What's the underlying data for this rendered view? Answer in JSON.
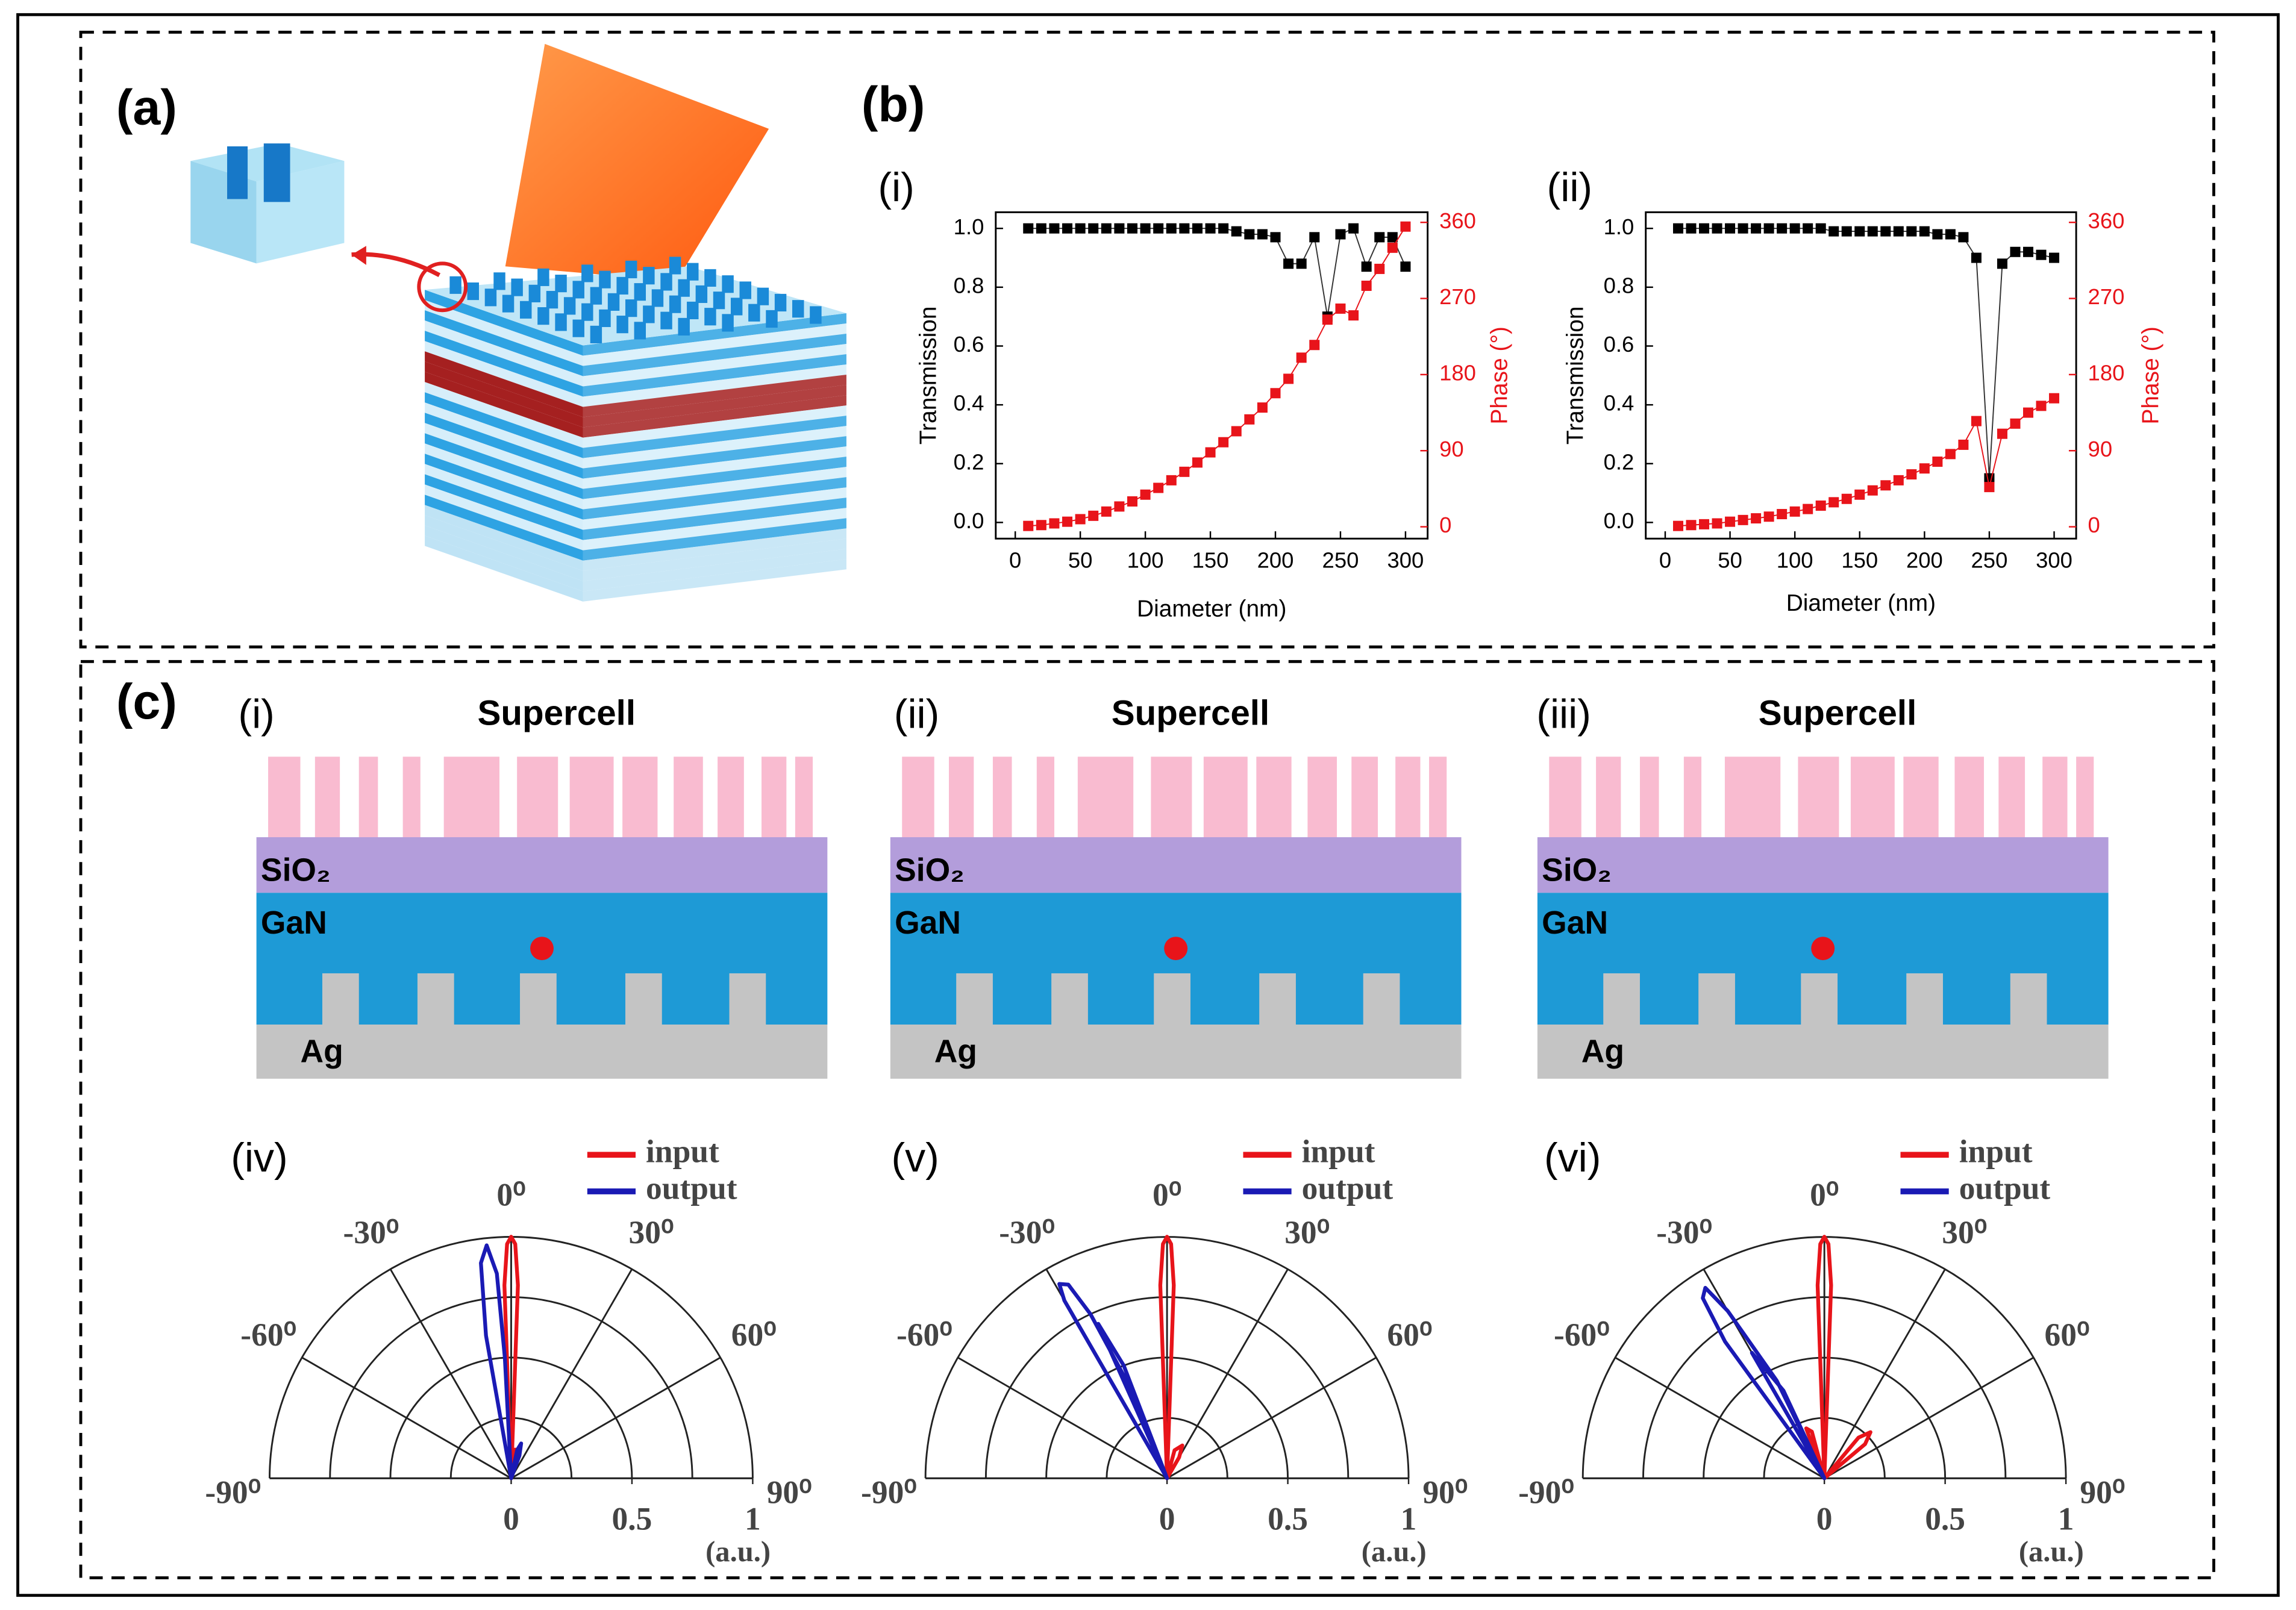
{
  "panels": {
    "a": "(a)",
    "b": "(b)",
    "c": "(c)"
  },
  "diagrams": [
    {
      "subtitle": "(i)",
      "title": "Supercell",
      "layers": [
        "SiO₂",
        "GaN",
        "Ag"
      ]
    },
    {
      "subtitle": "(ii)",
      "title": "Supercell",
      "layers": [
        "SiO₂",
        "GaN",
        "Ag"
      ]
    },
    {
      "subtitle": "(iii)",
      "title": "Supercell",
      "layers": [
        "SiO₂",
        "GaN",
        "Ag"
      ]
    }
  ],
  "chart_data": [
    {
      "type": "line",
      "subtitle": "(i)",
      "xlabel": "Diameter (nm)",
      "ylabel": "Transmission",
      "y2label": "Phase (°)",
      "x": [
        10,
        20,
        30,
        40,
        50,
        60,
        70,
        80,
        90,
        100,
        110,
        120,
        130,
        140,
        150,
        160,
        170,
        180,
        190,
        200,
        210,
        220,
        230,
        240,
        250,
        260,
        270,
        280,
        290,
        300
      ],
      "series": [
        {
          "color": "#000000",
          "values": [
            1,
            1,
            1,
            1,
            1,
            1,
            1,
            1,
            1,
            1,
            1,
            1,
            1,
            1,
            1,
            1,
            0.99,
            0.98,
            0.98,
            0.97,
            0.88,
            0.88,
            0.97,
            0.7,
            0.98,
            1,
            0.87,
            0.97,
            0.97,
            0.87
          ]
        },
        {
          "color": "#e8141a",
          "axis": "y2",
          "values": [
            1,
            2,
            4,
            6,
            9,
            13,
            18,
            24,
            30,
            38,
            46,
            55,
            65,
            76,
            88,
            100,
            113,
            127,
            141,
            158,
            175,
            200,
            215,
            245,
            258,
            250,
            285,
            305,
            330,
            355
          ]
        }
      ],
      "xlim": [
        -15,
        317
      ],
      "xticks": [
        0,
        50,
        100,
        150,
        200,
        250,
        300
      ],
      "ylim": [
        -0.055,
        1.055
      ],
      "yticks": [
        {
          "value": 0,
          "label": "0.0"
        },
        0.2,
        0.4,
        0.6,
        0.8,
        {
          "value": 1,
          "label": "1.0"
        }
      ],
      "y2lim": [
        -14,
        372
      ],
      "y2ticks": [
        0,
        90,
        180,
        270,
        360
      ]
    },
    {
      "type": "line",
      "subtitle": "(ii)",
      "xlabel": "Diameter (nm)",
      "ylabel": "Transmission",
      "y2label": "Phase (°)",
      "x": [
        10,
        20,
        30,
        40,
        50,
        60,
        70,
        80,
        90,
        100,
        110,
        120,
        130,
        140,
        150,
        160,
        170,
        180,
        190,
        200,
        210,
        220,
        230,
        240,
        250,
        260,
        270,
        280,
        290,
        300
      ],
      "series": [
        {
          "color": "#000000",
          "values": [
            1,
            1,
            1,
            1,
            1,
            1,
            1,
            1,
            1,
            1,
            1,
            1,
            0.99,
            0.99,
            0.99,
            0.99,
            0.99,
            0.99,
            0.99,
            0.99,
            0.98,
            0.98,
            0.97,
            0.9,
            0.15,
            0.88,
            0.92,
            0.92,
            0.91,
            0.9
          ]
        },
        {
          "color": "#e8141a",
          "axis": "y2",
          "values": [
            1,
            2,
            3,
            4,
            6,
            8,
            10,
            12,
            15,
            18,
            21,
            25,
            29,
            33,
            38,
            43,
            49,
            55,
            62,
            69,
            77,
            86,
            97,
            125,
            47,
            110,
            122,
            135,
            143,
            152
          ]
        }
      ],
      "xlim": [
        -15,
        317
      ],
      "xticks": [
        0,
        50,
        100,
        150,
        200,
        250,
        300
      ],
      "ylim": [
        -0.055,
        1.055
      ],
      "yticks": [
        {
          "value": 0,
          "label": "0.0"
        },
        0.2,
        0.4,
        0.6,
        0.8,
        {
          "value": 1,
          "label": "1.0"
        }
      ],
      "y2lim": [
        -14,
        372
      ],
      "y2ticks": [
        0,
        90,
        180,
        270,
        360
      ]
    },
    {
      "type": "polar",
      "subtitle": "(iv)",
      "rlabel": "(a.u.)",
      "rlim": [
        0,
        1
      ],
      "rticks": [
        0,
        0.5,
        1
      ],
      "rgrid": [
        0.25,
        0.5,
        0.75,
        1
      ],
      "thetaticks": [
        {
          "value": -90,
          "label": "-90⁰"
        },
        {
          "value": -60,
          "label": "-60⁰"
        },
        {
          "value": -30,
          "label": "-30⁰"
        },
        {
          "value": 0,
          "label": "0⁰"
        },
        {
          "value": 30,
          "label": "30⁰"
        },
        {
          "value": 60,
          "label": "60⁰"
        },
        {
          "value": 90,
          "label": "90⁰"
        }
      ],
      "series": [
        {
          "name": "input",
          "color": "#e8141a",
          "theta": [
            0,
            -2,
            -1,
            0,
            1,
            2,
            0,
            8,
            12,
            0
          ],
          "values": [
            0,
            0.8,
            0.97,
            1,
            0.97,
            0.8,
            0,
            0.12,
            0.1,
            0
          ]
        },
        {
          "name": "output",
          "color": "#1a1ab4",
          "theta": [
            0,
            -10,
            -8,
            -6,
            -4,
            -3,
            0,
            12,
            16,
            20,
            0
          ],
          "values": [
            0,
            0.6,
            0.9,
            0.97,
            0.85,
            0.5,
            0,
            0.12,
            0.15,
            0.1,
            0
          ]
        }
      ]
    },
    {
      "type": "polar",
      "subtitle": "(v)",
      "rlabel": "(a.u.)",
      "rlim": [
        0,
        1
      ],
      "rticks": [
        0,
        0.5,
        1
      ],
      "rgrid": [
        0.25,
        0.5,
        0.75,
        1
      ],
      "thetaticks": [
        {
          "value": -90,
          "label": "-90⁰"
        },
        {
          "value": -60,
          "label": "-60⁰"
        },
        {
          "value": -30,
          "label": "-30⁰"
        },
        {
          "value": 0,
          "label": "0⁰"
        },
        {
          "value": 30,
          "label": "30⁰"
        },
        {
          "value": 60,
          "label": "60⁰"
        },
        {
          "value": 90,
          "label": "90⁰"
        }
      ],
      "series": [
        {
          "name": "input",
          "color": "#e8141a",
          "theta": [
            0,
            -2,
            -1,
            0,
            1,
            2,
            0,
            15,
            25,
            30,
            0
          ],
          "values": [
            0,
            0.8,
            0.97,
            1,
            0.97,
            0.8,
            0,
            0.12,
            0.15,
            0.1,
            0
          ]
        },
        {
          "name": "output",
          "color": "#1a1ab4",
          "theta": [
            0,
            -30,
            -29,
            -27,
            -25,
            -22,
            0,
            -24,
            -21,
            0
          ],
          "values": [
            0,
            0.85,
            0.92,
            0.9,
            0.75,
            0.4,
            0,
            0.7,
            0.5,
            0
          ]
        }
      ]
    },
    {
      "type": "polar",
      "subtitle": "(vi)",
      "rlabel": "(a.u.)",
      "rlim": [
        0,
        1
      ],
      "rticks": [
        0,
        0.5,
        1
      ],
      "rgrid": [
        0.25,
        0.5,
        0.75,
        1
      ],
      "thetaticks": [
        {
          "value": -90,
          "label": "-90⁰"
        },
        {
          "value": -60,
          "label": "-60⁰"
        },
        {
          "value": -30,
          "label": "-30⁰"
        },
        {
          "value": 0,
          "label": "0⁰"
        },
        {
          "value": 30,
          "label": "30⁰"
        },
        {
          "value": 60,
          "label": "60⁰"
        },
        {
          "value": 90,
          "label": "90⁰"
        }
      ],
      "series": [
        {
          "name": "input",
          "color": "#e8141a",
          "theta": [
            0,
            -2,
            -1,
            0,
            1,
            2,
            0,
            40,
            45,
            50,
            0,
            -20,
            -15,
            0
          ],
          "values": [
            0,
            0.8,
            0.97,
            1,
            0.97,
            0.8,
            0,
            0.22,
            0.27,
            0.22,
            0,
            0.22,
            0.2,
            0
          ]
        },
        {
          "name": "output",
          "color": "#1a1ab4",
          "theta": [
            0,
            -36,
            -34,
            -32,
            -30,
            -26,
            0,
            -30,
            -25,
            0
          ],
          "values": [
            0,
            0.7,
            0.9,
            0.93,
            0.8,
            0.45,
            0,
            0.6,
            0.4,
            0
          ]
        }
      ]
    }
  ]
}
